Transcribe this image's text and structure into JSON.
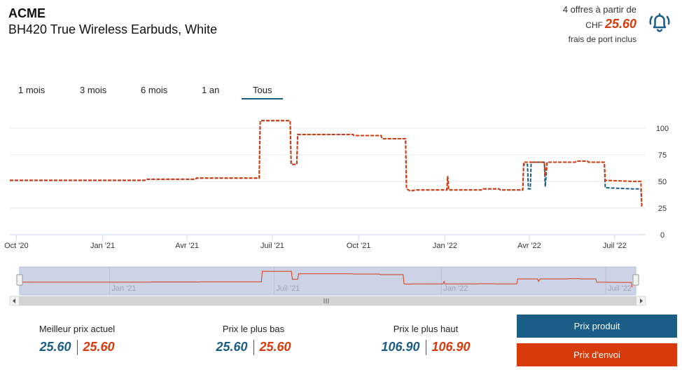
{
  "header": {
    "brand": "ACME",
    "product": "BH420 True Wireless Earbuds, White",
    "offers_text": "4 offres à partir de",
    "currency": "CHF",
    "best_price": "25.60",
    "shipping_note": "frais de port inclus",
    "icon": "bell-alert-icon"
  },
  "ranges": {
    "items": [
      "1 mois",
      "3 mois",
      "6 mois",
      "1 an",
      "Tous"
    ],
    "active": "Tous"
  },
  "colors": {
    "product": "#1a5d87",
    "shipping": "#d93a0c",
    "grid": "#e6e6e6",
    "navigator_bg": "#cdd3e6"
  },
  "chart_data": {
    "type": "line",
    "x_range": [
      "2020-09-24",
      "2022-08-03"
    ],
    "y_range": [
      0,
      115
    ],
    "y_ticks": [
      0,
      25,
      50,
      75,
      100
    ],
    "x_ticks": [
      {
        "date": "2020-10-01",
        "label": "Oct '20"
      },
      {
        "date": "2021-01-01",
        "label": "Jan '21"
      },
      {
        "date": "2021-04-01",
        "label": "Avr '21"
      },
      {
        "date": "2021-07-01",
        "label": "Juil '21"
      },
      {
        "date": "2021-10-01",
        "label": "Oct '21"
      },
      {
        "date": "2022-01-01",
        "label": "Jan '22"
      },
      {
        "date": "2022-04-01",
        "label": "Avr '22"
      },
      {
        "date": "2022-07-01",
        "label": "Juil '22"
      }
    ],
    "navigator_ticks": [
      {
        "date": "2021-01-01",
        "label": "Jan '21"
      },
      {
        "date": "2021-07-01",
        "label": "Juil '21"
      },
      {
        "date": "2022-01-01",
        "label": "Jan '22"
      },
      {
        "date": "2022-07-01",
        "label": "Juil '22"
      }
    ],
    "grid": true,
    "series": [
      {
        "name": "Prix produit",
        "color": "#1a5d87",
        "points": [
          [
            "2020-09-24",
            51
          ],
          [
            "2021-02-15",
            51
          ],
          [
            "2021-02-16",
            52
          ],
          [
            "2021-04-10",
            52
          ],
          [
            "2021-04-11",
            53
          ],
          [
            "2021-06-17",
            53
          ],
          [
            "2021-06-18",
            106.9
          ],
          [
            "2021-07-20",
            106.9
          ],
          [
            "2021-07-21",
            66
          ],
          [
            "2021-07-27",
            66
          ],
          [
            "2021-07-28",
            94
          ],
          [
            "2021-09-25",
            94
          ],
          [
            "2021-09-26",
            93
          ],
          [
            "2021-10-25",
            93
          ],
          [
            "2021-10-26",
            90
          ],
          [
            "2021-11-20",
            90
          ],
          [
            "2021-11-21",
            43
          ],
          [
            "2021-11-25",
            41
          ],
          [
            "2021-12-01",
            42
          ],
          [
            "2022-01-03",
            42
          ],
          [
            "2022-01-04",
            55
          ],
          [
            "2022-01-05",
            42
          ],
          [
            "2022-02-10",
            42
          ],
          [
            "2022-02-11",
            43
          ],
          [
            "2022-02-28",
            43
          ],
          [
            "2022-03-01",
            42
          ],
          [
            "2022-03-25",
            42
          ],
          [
            "2022-03-26",
            66
          ],
          [
            "2022-03-30",
            66
          ],
          [
            "2022-03-31",
            43
          ],
          [
            "2022-04-02",
            43
          ],
          [
            "2022-04-03",
            68
          ],
          [
            "2022-04-17",
            68
          ],
          [
            "2022-04-18",
            45
          ],
          [
            "2022-04-20",
            68
          ],
          [
            "2022-05-20",
            68
          ],
          [
            "2022-05-21",
            69
          ],
          [
            "2022-06-02",
            69
          ],
          [
            "2022-06-03",
            68
          ],
          [
            "2022-06-20",
            68
          ],
          [
            "2022-06-21",
            44
          ],
          [
            "2022-07-20",
            43
          ],
          [
            "2022-07-29",
            43
          ],
          [
            "2022-07-30",
            25.6
          ]
        ]
      },
      {
        "name": "Prix d'envoi",
        "color": "#d93a0c",
        "points": [
          [
            "2020-09-24",
            51
          ],
          [
            "2021-02-15",
            51
          ],
          [
            "2021-02-16",
            52
          ],
          [
            "2021-04-10",
            52
          ],
          [
            "2021-04-11",
            53
          ],
          [
            "2021-06-17",
            53
          ],
          [
            "2021-06-18",
            106.9
          ],
          [
            "2021-07-20",
            106.9
          ],
          [
            "2021-07-21",
            66
          ],
          [
            "2021-07-27",
            66
          ],
          [
            "2021-07-28",
            94
          ],
          [
            "2021-09-25",
            94
          ],
          [
            "2021-09-26",
            93
          ],
          [
            "2021-10-25",
            93
          ],
          [
            "2021-10-26",
            90
          ],
          [
            "2021-11-20",
            90
          ],
          [
            "2021-11-21",
            43
          ],
          [
            "2021-11-25",
            41
          ],
          [
            "2021-12-01",
            42
          ],
          [
            "2022-01-03",
            42
          ],
          [
            "2022-01-04",
            55
          ],
          [
            "2022-01-05",
            42
          ],
          [
            "2022-02-10",
            42
          ],
          [
            "2022-02-11",
            43
          ],
          [
            "2022-02-28",
            43
          ],
          [
            "2022-03-01",
            42
          ],
          [
            "2022-03-25",
            42
          ],
          [
            "2022-03-26",
            68
          ],
          [
            "2022-04-17",
            68
          ],
          [
            "2022-04-18",
            55
          ],
          [
            "2022-04-20",
            68
          ],
          [
            "2022-05-20",
            68
          ],
          [
            "2022-05-21",
            69
          ],
          [
            "2022-06-02",
            69
          ],
          [
            "2022-06-03",
            68
          ],
          [
            "2022-06-20",
            68
          ],
          [
            "2022-06-21",
            51
          ],
          [
            "2022-07-20",
            50
          ],
          [
            "2022-07-29",
            50
          ],
          [
            "2022-07-30",
            25.6
          ]
        ]
      }
    ]
  },
  "stats": [
    {
      "label": "Meilleur prix actuel",
      "product": "25.60",
      "shipping": "25.60"
    },
    {
      "label": "Prix le plus bas",
      "product": "25.60",
      "shipping": "25.60"
    },
    {
      "label": "Prix le plus haut",
      "product": "106.90",
      "shipping": "106.90"
    }
  ],
  "buttons": {
    "product_label": "Prix produit",
    "shipping_label": "Prix d'envoi"
  }
}
